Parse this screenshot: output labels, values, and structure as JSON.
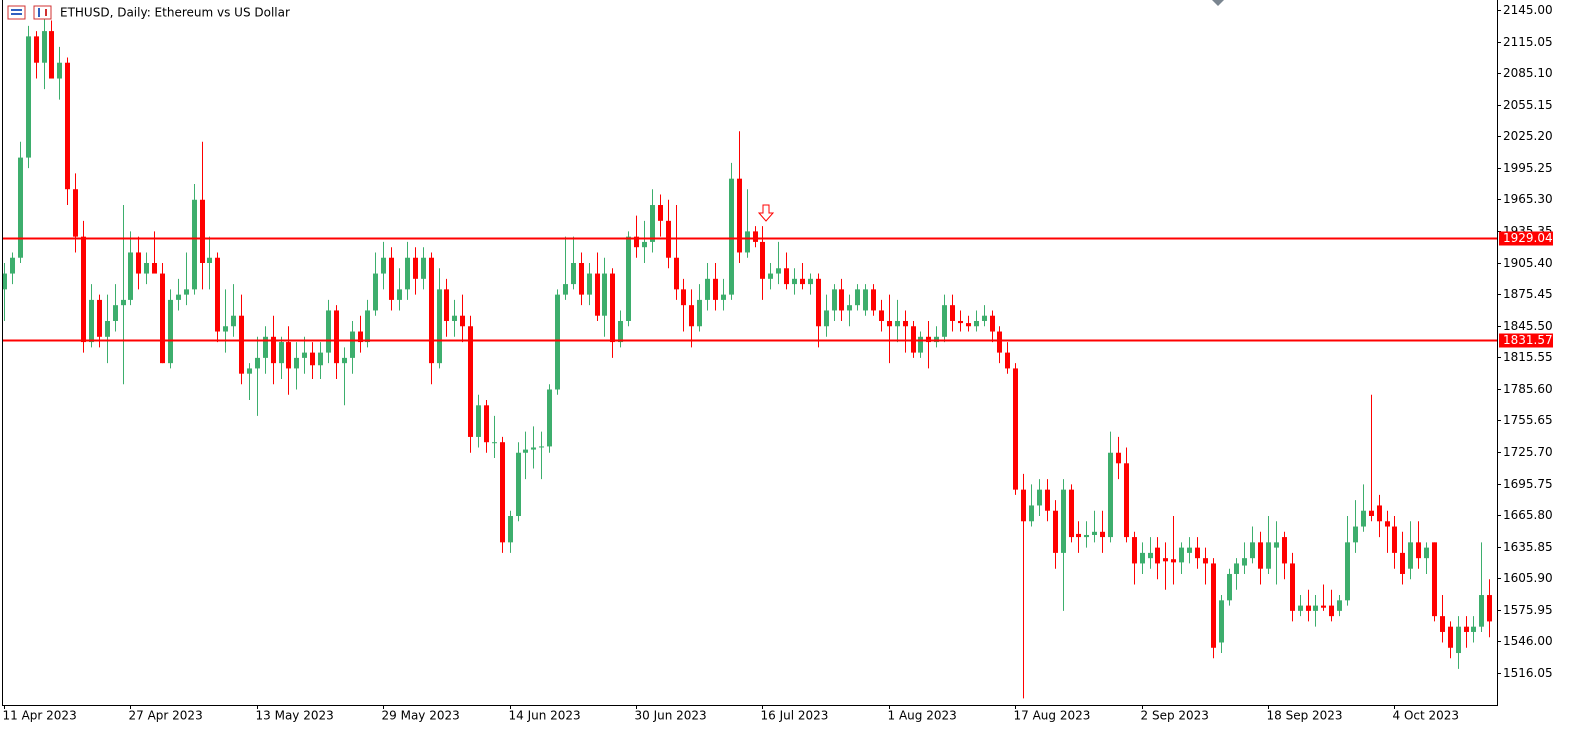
{
  "chart_data": {
    "type": "candlestick",
    "title": "ETHUSD, Daily:  Ethereum vs US Dollar",
    "up_color": "#3dae6d",
    "down_color": "#ff0000",
    "ylim": [
      1485.7,
      2154.5
    ],
    "yticks": [
      {
        "value": 2145.0,
        "label": "2145.00"
      },
      2115.05,
      {
        "value": 2085.1,
        "label": "2085.10"
      },
      2055.15,
      {
        "value": 2025.2,
        "label": "2025.20"
      },
      1995.25,
      {
        "value": 1965.3,
        "label": "1965.30"
      },
      1935.35,
      {
        "value": 1905.4,
        "label": "1905.40"
      },
      1875.45,
      {
        "value": 1845.5,
        "label": "1845.50"
      },
      1815.55,
      {
        "value": 1785.6,
        "label": "1785.60"
      },
      1755.65,
      {
        "value": 1725.7,
        "label": "1725.70"
      },
      1695.75,
      {
        "value": 1665.8,
        "label": "1665.80"
      },
      1635.85,
      {
        "value": 1605.9,
        "label": "1605.90"
      },
      1575.95,
      {
        "value": 1546.0,
        "label": "1546.00"
      },
      1516.05
    ],
    "hlines": [
      {
        "value": 1929.04,
        "color": "#ff0000"
      },
      {
        "value": 1831.57,
        "color": "#ff0000"
      }
    ],
    "categories": [
      "11 Apr 2023",
      null,
      null,
      null,
      null,
      null,
      null,
      null,
      null,
      null,
      null,
      null,
      null,
      null,
      null,
      null,
      "27 Apr 2023",
      null,
      null,
      null,
      null,
      null,
      null,
      null,
      null,
      null,
      null,
      null,
      null,
      null,
      null,
      null,
      "13 May 2023",
      null,
      null,
      null,
      null,
      null,
      null,
      null,
      null,
      null,
      null,
      null,
      null,
      null,
      null,
      null,
      "29 May 2023",
      null,
      null,
      null,
      null,
      null,
      null,
      null,
      null,
      null,
      null,
      null,
      null,
      null,
      null,
      null,
      "14 Jun 2023",
      null,
      null,
      null,
      null,
      null,
      null,
      null,
      null,
      null,
      null,
      null,
      null,
      null,
      null,
      null,
      "30 Jun 2023",
      null,
      null,
      null,
      null,
      null,
      null,
      null,
      null,
      null,
      null,
      null,
      null,
      null,
      null,
      null,
      "16 Jul 2023",
      null,
      null,
      null,
      null,
      null,
      null,
      null,
      null,
      null,
      null,
      null,
      null,
      null,
      null,
      null,
      "1 Aug 2023",
      null,
      null,
      null,
      null,
      null,
      null,
      null,
      null,
      null,
      null,
      null,
      null,
      null,
      null,
      null,
      "17 Aug 2023",
      null,
      null,
      null,
      null,
      null,
      null,
      null,
      null,
      null,
      null,
      null,
      null,
      null,
      null,
      null,
      "2 Sep 2023",
      null,
      null,
      null,
      null,
      null,
      null,
      null,
      null,
      null,
      null,
      null,
      null,
      null,
      null,
      null,
      "18 Sep 2023",
      null,
      null,
      null,
      null,
      null,
      null,
      null,
      null,
      null,
      null,
      null,
      null,
      null,
      null,
      null,
      "4 Oct 2023",
      null,
      null,
      null,
      null,
      null,
      null,
      null,
      null,
      null,
      null,
      null,
      null
    ],
    "ohlc": [
      [
        1880,
        1905,
        1850,
        1895
      ],
      [
        1895,
        1915,
        1885,
        1910
      ],
      [
        1910,
        2020,
        1905,
        2005
      ],
      [
        2005,
        2130,
        1995,
        2120
      ],
      [
        2120,
        2125,
        2080,
        2095
      ],
      [
        2095,
        2140,
        2070,
        2125
      ],
      [
        2125,
        2135,
        2080,
        2080
      ],
      [
        2080,
        2110,
        2060,
        2095
      ],
      [
        2095,
        2100,
        1960,
        1975
      ],
      [
        1975,
        1990,
        1915,
        1930
      ],
      [
        1930,
        1945,
        1820,
        1830
      ],
      [
        1830,
        1885,
        1825,
        1870
      ],
      [
        1870,
        1875,
        1825,
        1835
      ],
      [
        1835,
        1875,
        1810,
        1850
      ],
      [
        1850,
        1885,
        1840,
        1865
      ],
      [
        1865,
        1960,
        1790,
        1870
      ],
      [
        1870,
        1935,
        1865,
        1915
      ],
      [
        1915,
        1930,
        1880,
        1895
      ],
      [
        1895,
        1915,
        1885,
        1905
      ],
      [
        1905,
        1935,
        1895,
        1895
      ],
      [
        1895,
        1905,
        1810,
        1810
      ],
      [
        1810,
        1880,
        1805,
        1870
      ],
      [
        1870,
        1890,
        1860,
        1875
      ],
      [
        1875,
        1915,
        1865,
        1880
      ],
      [
        1880,
        1980,
        1875,
        1965
      ],
      [
        1965,
        2020,
        1880,
        1905
      ],
      [
        1905,
        1930,
        1880,
        1910
      ],
      [
        1910,
        1915,
        1830,
        1840
      ],
      [
        1840,
        1880,
        1820,
        1845
      ],
      [
        1845,
        1885,
        1835,
        1855
      ],
      [
        1855,
        1875,
        1790,
        1800
      ],
      [
        1800,
        1810,
        1775,
        1805
      ],
      [
        1805,
        1835,
        1760,
        1815
      ],
      [
        1815,
        1845,
        1800,
        1835
      ],
      [
        1835,
        1855,
        1790,
        1810
      ],
      [
        1810,
        1835,
        1795,
        1830
      ],
      [
        1830,
        1845,
        1780,
        1805
      ],
      [
        1805,
        1830,
        1785,
        1815
      ],
      [
        1815,
        1835,
        1800,
        1820
      ],
      [
        1820,
        1830,
        1795,
        1808
      ],
      [
        1808,
        1830,
        1795,
        1820
      ],
      [
        1820,
        1870,
        1810,
        1860
      ],
      [
        1860,
        1865,
        1795,
        1810
      ],
      [
        1810,
        1825,
        1770,
        1815
      ],
      [
        1815,
        1850,
        1800,
        1840
      ],
      [
        1840,
        1855,
        1820,
        1830
      ],
      [
        1830,
        1870,
        1825,
        1860
      ],
      [
        1860,
        1915,
        1855,
        1895
      ],
      [
        1895,
        1925,
        1880,
        1910
      ],
      [
        1910,
        1920,
        1860,
        1870
      ],
      [
        1870,
        1900,
        1860,
        1880
      ],
      [
        1880,
        1925,
        1870,
        1910
      ],
      [
        1910,
        1920,
        1875,
        1890
      ],
      [
        1890,
        1920,
        1880,
        1910
      ],
      [
        1910,
        1915,
        1790,
        1810
      ],
      [
        1810,
        1900,
        1805,
        1880
      ],
      [
        1880,
        1890,
        1835,
        1850
      ],
      [
        1850,
        1870,
        1835,
        1855
      ],
      [
        1855,
        1875,
        1830,
        1845
      ],
      [
        1845,
        1855,
        1725,
        1740
      ],
      [
        1740,
        1780,
        1730,
        1770
      ],
      [
        1770,
        1775,
        1725,
        1735
      ],
      [
        1735,
        1760,
        1720,
        1735
      ],
      [
        1735,
        1740,
        1630,
        1640
      ],
      [
        1640,
        1670,
        1630,
        1665
      ],
      [
        1665,
        1735,
        1660,
        1725
      ],
      [
        1725,
        1745,
        1700,
        1728
      ],
      [
        1728,
        1750,
        1710,
        1730
      ],
      [
        1730,
        1745,
        1700,
        1731
      ],
      [
        1731,
        1790,
        1725,
        1785
      ],
      [
        1785,
        1880,
        1780,
        1875
      ],
      [
        1875,
        1930,
        1870,
        1885
      ],
      [
        1885,
        1930,
        1880,
        1905
      ],
      [
        1905,
        1915,
        1865,
        1875
      ],
      [
        1875,
        1905,
        1865,
        1895
      ],
      [
        1895,
        1915,
        1850,
        1855
      ],
      [
        1855,
        1910,
        1835,
        1895
      ],
      [
        1895,
        1900,
        1815,
        1830
      ],
      [
        1830,
        1860,
        1825,
        1850
      ],
      [
        1850,
        1935,
        1845,
        1930
      ],
      [
        1930,
        1950,
        1910,
        1920
      ],
      [
        1920,
        1945,
        1905,
        1925
      ],
      [
        1925,
        1975,
        1915,
        1960
      ],
      [
        1960,
        1970,
        1930,
        1945
      ],
      [
        1945,
        1965,
        1900,
        1910
      ],
      [
        1910,
        1960,
        1870,
        1880
      ],
      [
        1880,
        1890,
        1840,
        1865
      ],
      [
        1865,
        1880,
        1825,
        1845
      ],
      [
        1845,
        1885,
        1840,
        1870
      ],
      [
        1870,
        1905,
        1860,
        1890
      ],
      [
        1890,
        1905,
        1860,
        1870
      ],
      [
        1870,
        1890,
        1860,
        1875
      ],
      [
        1875,
        2000,
        1870,
        1985
      ],
      [
        1985,
        2030,
        1905,
        1915
      ],
      [
        1915,
        1975,
        1910,
        1935
      ],
      [
        1935,
        1940,
        1920,
        1925
      ],
      [
        1925,
        1940,
        1870,
        1890
      ],
      [
        1890,
        1905,
        1880,
        1895
      ],
      [
        1895,
        1925,
        1885,
        1900
      ],
      [
        1900,
        1915,
        1880,
        1885
      ],
      [
        1885,
        1900,
        1875,
        1890
      ],
      [
        1890,
        1905,
        1880,
        1885
      ],
      [
        1885,
        1895,
        1875,
        1890
      ],
      [
        1890,
        1895,
        1825,
        1845
      ],
      [
        1845,
        1875,
        1835,
        1860
      ],
      [
        1860,
        1885,
        1850,
        1880
      ],
      [
        1880,
        1890,
        1850,
        1860
      ],
      [
        1860,
        1875,
        1845,
        1865
      ],
      [
        1865,
        1885,
        1860,
        1880
      ],
      [
        1860,
        1885,
        1855,
        1880
      ],
      [
        1880,
        1885,
        1855,
        1860
      ],
      [
        1860,
        1870,
        1840,
        1850
      ],
      [
        1850,
        1875,
        1810,
        1845
      ],
      [
        1845,
        1870,
        1830,
        1850
      ],
      [
        1850,
        1860,
        1820,
        1845
      ],
      [
        1845,
        1850,
        1815,
        1820
      ],
      [
        1820,
        1840,
        1815,
        1835
      ],
      [
        1835,
        1850,
        1805,
        1830
      ],
      [
        1830,
        1845,
        1825,
        1835
      ],
      [
        1835,
        1875,
        1830,
        1865
      ],
      [
        1865,
        1875,
        1840,
        1850
      ],
      [
        1850,
        1860,
        1840,
        1848
      ],
      [
        1848,
        1855,
        1840,
        1845
      ],
      [
        1845,
        1860,
        1840,
        1850
      ],
      [
        1850,
        1865,
        1845,
        1855
      ],
      [
        1855,
        1860,
        1830,
        1840
      ],
      [
        1840,
        1845,
        1810,
        1820
      ],
      [
        1820,
        1830,
        1800,
        1805
      ],
      [
        1805,
        1810,
        1685,
        1690
      ],
      [
        1690,
        1705,
        1492,
        1660
      ],
      [
        1660,
        1695,
        1655,
        1675
      ],
      [
        1675,
        1700,
        1665,
        1690
      ],
      [
        1690,
        1700,
        1660,
        1670
      ],
      [
        1670,
        1680,
        1615,
        1630
      ],
      [
        1630,
        1700,
        1575,
        1690
      ],
      [
        1690,
        1695,
        1640,
        1645
      ],
      [
        1648,
        1660,
        1630,
        1645
      ],
      [
        1645,
        1660,
        1635,
        1647
      ],
      [
        1647,
        1670,
        1640,
        1650
      ],
      [
        1650,
        1670,
        1630,
        1645
      ],
      [
        1645,
        1745,
        1640,
        1725
      ],
      [
        1725,
        1740,
        1700,
        1715
      ],
      [
        1715,
        1730,
        1640,
        1645
      ],
      [
        1645,
        1650,
        1600,
        1620
      ],
      [
        1620,
        1640,
        1610,
        1630
      ],
      [
        1625,
        1645,
        1615,
        1630
      ],
      [
        1635,
        1645,
        1605,
        1620
      ],
      [
        1625,
        1640,
        1595,
        1622
      ],
      [
        1624,
        1665,
        1600,
        1621
      ],
      [
        1621,
        1640,
        1610,
        1635
      ],
      [
        1630,
        1645,
        1620,
        1635
      ],
      [
        1635,
        1645,
        1615,
        1625
      ],
      [
        1625,
        1635,
        1600,
        1620
      ],
      [
        1620,
        1625,
        1530,
        1540
      ],
      [
        1545,
        1590,
        1535,
        1585
      ],
      [
        1585,
        1615,
        1580,
        1610
      ],
      [
        1610,
        1625,
        1595,
        1620
      ],
      [
        1618,
        1640,
        1610,
        1625
      ],
      [
        1625,
        1655,
        1620,
        1640
      ],
      [
        1640,
        1650,
        1600,
        1615
      ],
      [
        1615,
        1665,
        1610,
        1640
      ],
      [
        1635,
        1660,
        1600,
        1640
      ],
      [
        1645,
        1650,
        1605,
        1620
      ],
      [
        1620,
        1630,
        1565,
        1575
      ],
      [
        1575,
        1590,
        1570,
        1580
      ],
      [
        1580,
        1595,
        1565,
        1575
      ],
      [
        1575,
        1590,
        1560,
        1580
      ],
      [
        1580,
        1600,
        1575,
        1578
      ],
      [
        1580,
        1595,
        1565,
        1570
      ],
      [
        1575,
        1590,
        1570,
        1585
      ],
      [
        1585,
        1665,
        1580,
        1640
      ],
      [
        1640,
        1680,
        1630,
        1655
      ],
      [
        1655,
        1695,
        1650,
        1670
      ],
      [
        1670,
        1780,
        1660,
        1665
      ],
      [
        1675,
        1685,
        1645,
        1660
      ],
      [
        1660,
        1670,
        1630,
        1655
      ],
      [
        1655,
        1665,
        1615,
        1630
      ],
      [
        1630,
        1650,
        1600,
        1610
      ],
      [
        1615,
        1660,
        1605,
        1640
      ],
      [
        1640,
        1660,
        1615,
        1625
      ],
      [
        1625,
        1640,
        1610,
        1635
      ],
      [
        1640,
        1640,
        1565,
        1570
      ],
      [
        1570,
        1590,
        1545,
        1555
      ],
      [
        1560,
        1565,
        1530,
        1540
      ],
      [
        1535,
        1570,
        1520,
        1560
      ],
      [
        1560,
        1570,
        1540,
        1555
      ],
      [
        1555,
        1570,
        1545,
        1560
      ],
      [
        1560,
        1640,
        1555,
        1590
      ],
      [
        1590,
        1605,
        1550,
        1565
      ]
    ]
  }
}
